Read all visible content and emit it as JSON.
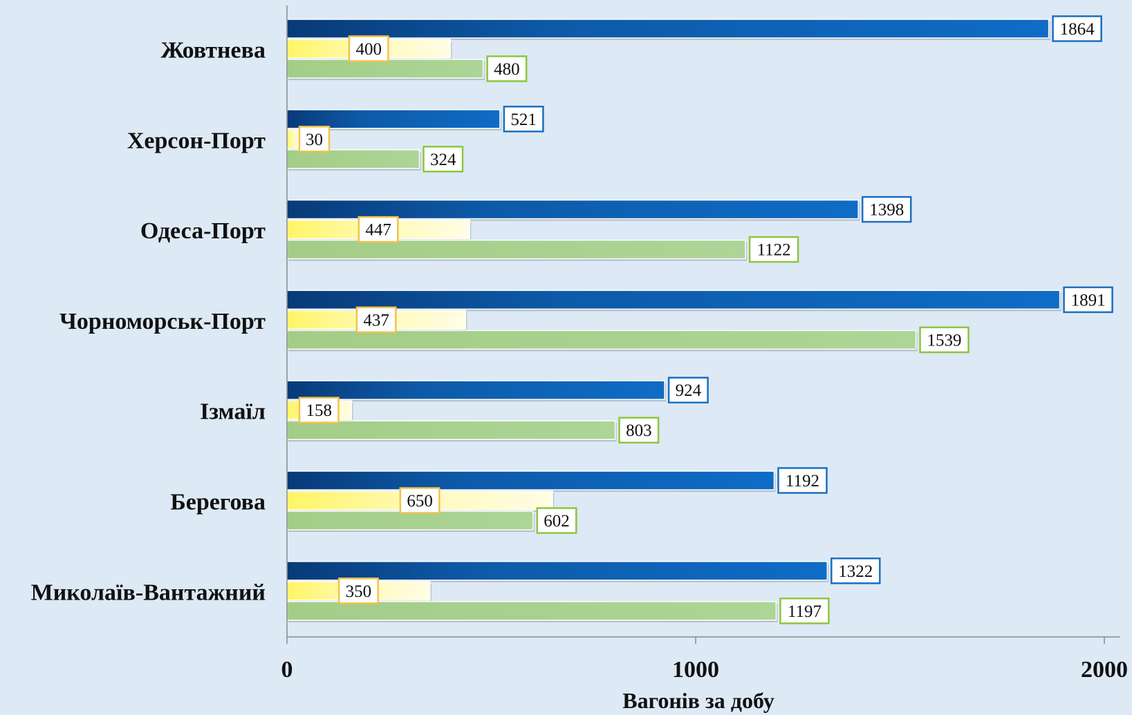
{
  "chart_data": {
    "type": "bar",
    "orientation": "horizontal",
    "categories": [
      "Жовтнева",
      "Херсон-Порт",
      "Одеса-Порт",
      "Чорноморськ-Порт",
      "Ізмаїл",
      "Берегова",
      "Миколаїв-Вантажний"
    ],
    "series": [
      {
        "values": [
          1864,
          521,
          1398,
          1891,
          924,
          1192,
          1322
        ],
        "color": "#0d63b8",
        "label_border": "#1a6fc0"
      },
      {
        "values": [
          400,
          30,
          447,
          437,
          158,
          650,
          350
        ],
        "color": "#fff9a8",
        "label_border": "#f2c24a"
      },
      {
        "values": [
          480,
          324,
          1122,
          1539,
          803,
          602,
          1197
        ],
        "color": "#a8d08d",
        "label_border": "#8cc63f"
      }
    ],
    "xlabel": "Вагонів за добу",
    "ylabel": "",
    "xlim": [
      0,
      2000
    ],
    "x_ticks": [
      "0",
      "1000",
      "2000"
    ],
    "grid": false,
    "legend": "none",
    "background": "#dde9f5"
  }
}
